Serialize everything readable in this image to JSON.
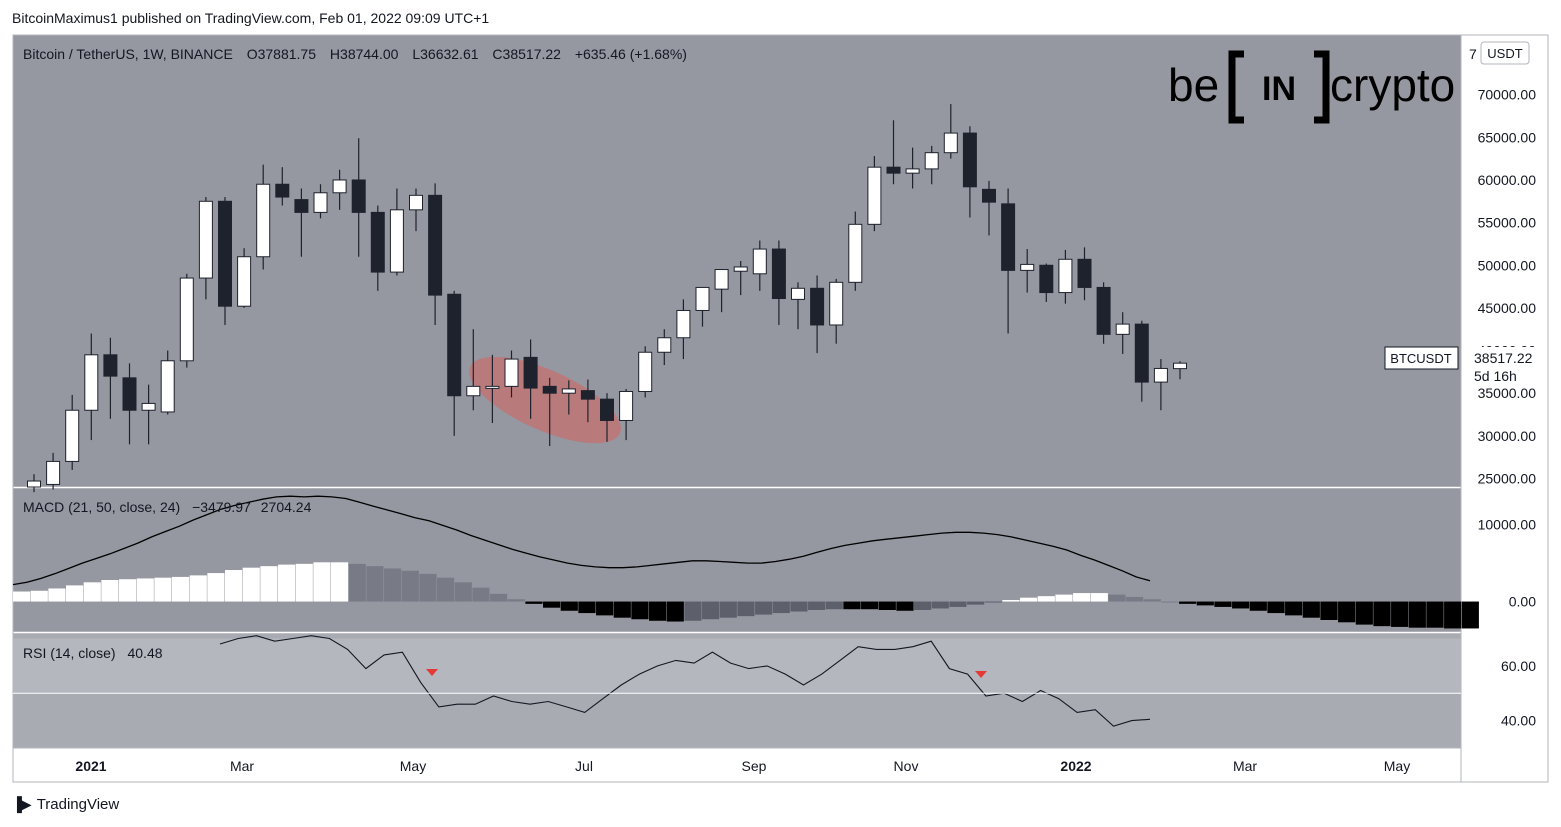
{
  "publish_line": "BitcoinMaximus1 published on TradingView.com, Feb 01, 2022 09:09 UTC+1",
  "footer_brand": "TradingView",
  "watermark": "beincrypto",
  "colors": {
    "pane_bg": "#9598a1",
    "rsi_bg": "#a9abb3",
    "rsi_band": "#b5b7be",
    "up": "#ffffff",
    "down": "#1e222d",
    "wick": "#1e222d",
    "hist_pos_up": "#ffffff",
    "hist_pos_down": "#787b86",
    "hist_neg_down": "#000000",
    "hist_neg_up": "#5d606b",
    "ellipse": "#c57070",
    "marker": "#e53935"
  },
  "chart_data": {
    "type": "candlestick",
    "symbol_line": {
      "symbol": "Bitcoin / TetherUS, 1W, BINANCE",
      "o_label": "O",
      "o": "37881.75",
      "h_label": "H",
      "h": "38744.00",
      "l_label": "L",
      "l": "36632.61",
      "c_label": "C",
      "c": "38517.22",
      "change": "+635.46 (+1.68%)"
    },
    "price_axis": {
      "unit": "USDT",
      "range": [
        24000,
        77000
      ],
      "ticks": [
        "25000.00",
        "30000.00",
        "35000.00",
        "40000.00",
        "45000.00",
        "50000.00",
        "55000.00",
        "60000.00",
        "65000.00",
        "70000.00"
      ],
      "top_partial": "7"
    },
    "last_price_label": {
      "name": "BTCUSDT",
      "value": "38517.22",
      "countdown": "5d 16h"
    },
    "time_axis": {
      "labels": [
        "2021",
        "Mar",
        "May",
        "Jul",
        "Sep",
        "Nov",
        "2022",
        "Mar",
        "May"
      ]
    },
    "candles": [
      {
        "o": 24000,
        "h": 25500,
        "l": 23400,
        "c": 24700
      },
      {
        "o": 24300,
        "h": 28000,
        "l": 23700,
        "c": 27000
      },
      {
        "o": 27000,
        "h": 34800,
        "l": 26000,
        "c": 33000
      },
      {
        "o": 33000,
        "h": 42000,
        "l": 29500,
        "c": 39500
      },
      {
        "o": 39500,
        "h": 41500,
        "l": 32000,
        "c": 37000
      },
      {
        "o": 36800,
        "h": 38500,
        "l": 29000,
        "c": 33000
      },
      {
        "o": 33000,
        "h": 36000,
        "l": 29000,
        "c": 33800
      },
      {
        "o": 32800,
        "h": 40000,
        "l": 32500,
        "c": 38800
      },
      {
        "o": 38800,
        "h": 49000,
        "l": 38000,
        "c": 48500
      },
      {
        "o": 48500,
        "h": 58000,
        "l": 46000,
        "c": 57500
      },
      {
        "o": 57500,
        "h": 58000,
        "l": 43000,
        "c": 45200
      },
      {
        "o": 45200,
        "h": 52000,
        "l": 45000,
        "c": 51000
      },
      {
        "o": 51000,
        "h": 61800,
        "l": 49500,
        "c": 59500
      },
      {
        "o": 59500,
        "h": 61500,
        "l": 57000,
        "c": 58000
      },
      {
        "o": 57700,
        "h": 59000,
        "l": 51000,
        "c": 56200
      },
      {
        "o": 56200,
        "h": 59500,
        "l": 55500,
        "c": 58500
      },
      {
        "o": 58500,
        "h": 61200,
        "l": 56500,
        "c": 60000
      },
      {
        "o": 60000,
        "h": 64900,
        "l": 51000,
        "c": 56200
      },
      {
        "o": 56200,
        "h": 57000,
        "l": 47000,
        "c": 49200
      },
      {
        "o": 49200,
        "h": 59000,
        "l": 48800,
        "c": 56500
      },
      {
        "o": 56500,
        "h": 59000,
        "l": 54000,
        "c": 58200
      },
      {
        "o": 58200,
        "h": 59600,
        "l": 43000,
        "c": 46500
      },
      {
        "o": 46600,
        "h": 47000,
        "l": 30000,
        "c": 34700
      },
      {
        "o": 34700,
        "h": 42500,
        "l": 33000,
        "c": 35800
      },
      {
        "o": 35600,
        "h": 39500,
        "l": 31500,
        "c": 35800
      },
      {
        "o": 35800,
        "h": 40000,
        "l": 34500,
        "c": 39000
      },
      {
        "o": 39200,
        "h": 41300,
        "l": 32000,
        "c": 35600
      },
      {
        "o": 35800,
        "h": 36800,
        "l": 28800,
        "c": 35000
      },
      {
        "o": 35000,
        "h": 36500,
        "l": 32500,
        "c": 35500
      },
      {
        "o": 35300,
        "h": 36600,
        "l": 31600,
        "c": 34300
      },
      {
        "o": 34300,
        "h": 35000,
        "l": 29300,
        "c": 31800
      },
      {
        "o": 31800,
        "h": 35500,
        "l": 29500,
        "c": 35200
      },
      {
        "o": 35200,
        "h": 40500,
        "l": 34500,
        "c": 39800
      },
      {
        "o": 39800,
        "h": 42500,
        "l": 38300,
        "c": 41500
      },
      {
        "o": 41500,
        "h": 46000,
        "l": 39000,
        "c": 44700
      },
      {
        "o": 44700,
        "h": 47000,
        "l": 42800,
        "c": 47400
      },
      {
        "o": 47200,
        "h": 49500,
        "l": 44500,
        "c": 49500
      },
      {
        "o": 49300,
        "h": 50500,
        "l": 46500,
        "c": 49800
      },
      {
        "o": 49000,
        "h": 52900,
        "l": 47000,
        "c": 51900
      },
      {
        "o": 51900,
        "h": 52900,
        "l": 43000,
        "c": 46100
      },
      {
        "o": 46000,
        "h": 48000,
        "l": 42500,
        "c": 47300
      },
      {
        "o": 47300,
        "h": 48800,
        "l": 39700,
        "c": 43000
      },
      {
        "o": 43000,
        "h": 48400,
        "l": 40800,
        "c": 48000
      },
      {
        "o": 48000,
        "h": 56300,
        "l": 47000,
        "c": 54800
      },
      {
        "o": 54800,
        "h": 62800,
        "l": 54000,
        "c": 61500
      },
      {
        "o": 61500,
        "h": 67000,
        "l": 59500,
        "c": 60800
      },
      {
        "o": 60800,
        "h": 63800,
        "l": 59000,
        "c": 61300
      },
      {
        "o": 61300,
        "h": 64000,
        "l": 59500,
        "c": 63200
      },
      {
        "o": 63200,
        "h": 68900,
        "l": 62500,
        "c": 65500
      },
      {
        "o": 65500,
        "h": 66300,
        "l": 55600,
        "c": 59200
      },
      {
        "o": 58900,
        "h": 59900,
        "l": 53500,
        "c": 57400
      },
      {
        "o": 57200,
        "h": 59000,
        "l": 42000,
        "c": 49400
      },
      {
        "o": 49400,
        "h": 51900,
        "l": 46800,
        "c": 50100
      },
      {
        "o": 50000,
        "h": 50200,
        "l": 45700,
        "c": 46800
      },
      {
        "o": 46800,
        "h": 51800,
        "l": 45500,
        "c": 50700
      },
      {
        "o": 50700,
        "h": 52100,
        "l": 45900,
        "c": 47400
      },
      {
        "o": 47400,
        "h": 48000,
        "l": 40800,
        "c": 41900
      },
      {
        "o": 41900,
        "h": 44500,
        "l": 39600,
        "c": 43100
      },
      {
        "o": 43100,
        "h": 43500,
        "l": 34000,
        "c": 36300
      },
      {
        "o": 36300,
        "h": 39000,
        "l": 33000,
        "c": 37900
      },
      {
        "o": 37880,
        "h": 38744,
        "l": 36632,
        "c": 38517
      }
    ],
    "macd": {
      "label": "MACD (21, 50, close, 24)",
      "value1": "−3479.97",
      "value2": "2704.24",
      "axis_ticks": [
        "10000.00",
        "0.00"
      ],
      "range": [
        -3700,
        14500
      ],
      "line": [
        2200,
        2500,
        3000,
        3600,
        4300,
        5000,
        5600,
        6200,
        6900,
        7600,
        8400,
        9100,
        9800,
        10600,
        11300,
        12000,
        12500,
        12900,
        13300,
        13600,
        13700,
        13600,
        13700,
        13600,
        13400,
        12900,
        12400,
        11900,
        11400,
        10900,
        10500,
        9900,
        9300,
        8600,
        8000,
        7400,
        6800,
        6300,
        5800,
        5400,
        5000,
        4700,
        4500,
        4400,
        4400,
        4500,
        4700,
        4900,
        5100,
        5300,
        5300,
        5200,
        5100,
        5000,
        5000,
        5200,
        5500,
        5900,
        6400,
        6900,
        7300,
        7600,
        7900,
        8100,
        8300,
        8500,
        8700,
        8900,
        9000,
        9000,
        8900,
        8700,
        8400,
        8000,
        7600,
        7200,
        6700,
        6000,
        5400,
        4700,
        4000,
        3200,
        2700
      ],
      "hist": [
        1300,
        1400,
        1700,
        2100,
        2500,
        2800,
        2900,
        3000,
        3100,
        3200,
        3400,
        3700,
        4100,
        4400,
        4600,
        4800,
        4900,
        5100,
        5100,
        4900,
        4600,
        4300,
        4000,
        3600,
        3100,
        2500,
        1800,
        1000,
        300,
        -300,
        -800,
        -1200,
        -1500,
        -1800,
        -2100,
        -2300,
        -2500,
        -2600,
        -2500,
        -2300,
        -2100,
        -1900,
        -1700,
        -1500,
        -1300,
        -1100,
        -1000,
        -1000,
        -1000,
        -1100,
        -1200,
        -1100,
        -900,
        -700,
        -400,
        -100,
        200,
        500,
        700,
        900,
        1100,
        1100,
        900,
        600,
        300,
        0,
        -300,
        -500,
        -700,
        -900,
        -1200,
        -1500,
        -1800,
        -2100,
        -2400,
        -2700,
        -3000,
        -3200,
        -3300,
        -3400,
        -3400,
        -3500,
        -3500
      ]
    },
    "rsi": {
      "label": "RSI (14, close)",
      "value": "40.48",
      "axis_ticks": [
        "60.00",
        "40.00"
      ],
      "range": [
        30,
        72
      ],
      "band": [
        50,
        70
      ],
      "values": [
        68,
        70,
        71,
        69,
        70,
        71,
        70,
        66,
        59,
        64,
        65,
        54,
        45,
        46,
        46,
        49,
        47,
        46,
        47,
        45,
        43,
        48,
        53,
        57,
        60,
        62,
        61,
        65,
        61,
        59,
        60,
        57,
        53,
        57,
        62,
        67,
        66,
        66,
        67,
        69,
        59,
        57,
        49,
        50,
        47,
        51,
        48,
        43,
        44,
        38,
        40,
        40.5
      ]
    }
  }
}
